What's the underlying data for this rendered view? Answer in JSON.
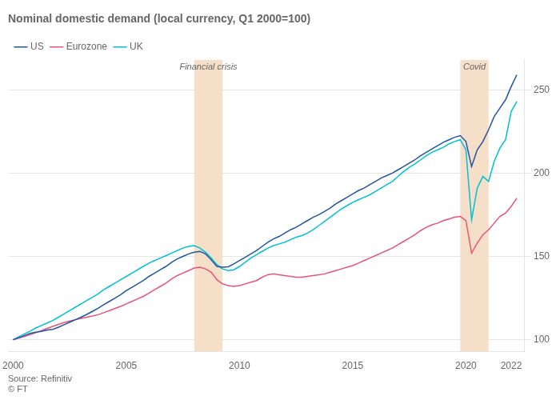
{
  "chart_data": {
    "type": "line",
    "title": "Nominal domestic demand (local currency, Q1 2000=100)",
    "source": "Source: Refinitiv",
    "footer": "© FT",
    "legend": "top-left",
    "grid": "y",
    "xlim": [
      1999.8,
      2022.6
    ],
    "xticks": [
      2000,
      2005,
      2010,
      2015,
      2020,
      2022
    ],
    "ylim": [
      93,
      268
    ],
    "yticks": [
      100,
      150,
      200,
      250
    ],
    "shading": [
      {
        "x0": 2008.0,
        "x1": 2009.25,
        "label": "Financial crisis",
        "color": "#f5dfc8"
      },
      {
        "x0": 2019.75,
        "x1": 2021.0,
        "label": "Covid",
        "color": "#f5dfc8"
      }
    ],
    "x": [
      2000.0,
      2000.25,
      2000.5,
      2000.75,
      2001.0,
      2001.25,
      2001.5,
      2001.75,
      2002.0,
      2002.25,
      2002.5,
      2002.75,
      2003.0,
      2003.25,
      2003.5,
      2003.75,
      2004.0,
      2004.25,
      2004.5,
      2004.75,
      2005.0,
      2005.25,
      2005.5,
      2005.75,
      2006.0,
      2006.25,
      2006.5,
      2006.75,
      2007.0,
      2007.25,
      2007.5,
      2007.75,
      2008.0,
      2008.25,
      2008.5,
      2008.75,
      2009.0,
      2009.25,
      2009.5,
      2009.75,
      2010.0,
      2010.25,
      2010.5,
      2010.75,
      2011.0,
      2011.25,
      2011.5,
      2011.75,
      2012.0,
      2012.25,
      2012.5,
      2012.75,
      2013.0,
      2013.25,
      2013.5,
      2013.75,
      2014.0,
      2014.25,
      2014.5,
      2014.75,
      2015.0,
      2015.25,
      2015.5,
      2015.75,
      2016.0,
      2016.25,
      2016.5,
      2016.75,
      2017.0,
      2017.25,
      2017.5,
      2017.75,
      2018.0,
      2018.25,
      2018.5,
      2018.75,
      2019.0,
      2019.25,
      2019.5,
      2019.75,
      2020.0,
      2020.25,
      2020.5,
      2020.75,
      2021.0,
      2021.25,
      2021.5,
      2021.75,
      2022.0,
      2022.25
    ],
    "series": [
      {
        "name": "US",
        "color": "#2155a3",
        "values": [
          100,
          101.2,
          102.5,
          103.8,
          104.5,
          105.0,
          105.8,
          106.2,
          107.5,
          109.0,
          110.5,
          112.0,
          113.5,
          115.2,
          117.0,
          118.8,
          121.0,
          123.0,
          125.0,
          127.0,
          129.5,
          131.5,
          133.5,
          135.5,
          138.0,
          140.0,
          142.0,
          144.0,
          146.5,
          148.5,
          150.0,
          151.5,
          152.5,
          153.0,
          151.5,
          148.0,
          144.0,
          143.5,
          143.8,
          145.5,
          147.5,
          149.5,
          151.5,
          153.5,
          156.0,
          158.5,
          160.5,
          162.0,
          164.0,
          166.0,
          167.5,
          169.5,
          171.5,
          173.5,
          175.0,
          177.0,
          179.0,
          181.5,
          183.5,
          185.5,
          187.5,
          189.5,
          191.0,
          193.0,
          195.0,
          197.0,
          198.5,
          200.0,
          202.0,
          204.0,
          206.0,
          208.0,
          210.5,
          212.5,
          214.5,
          216.5,
          218.5,
          220.0,
          221.5,
          222.5,
          219.0,
          204.0,
          214.0,
          219.0,
          226.0,
          234.0,
          239.0,
          244.0,
          252.0,
          259.0
        ]
      },
      {
        "name": "Eurozone",
        "color": "#e8537a",
        "values": [
          100,
          101.0,
          102.0,
          103.0,
          104.2,
          105.5,
          106.8,
          108.0,
          109.2,
          110.3,
          111.2,
          112.0,
          112.8,
          113.5,
          114.2,
          115.0,
          116.2,
          117.5,
          118.8,
          120.0,
          121.5,
          123.0,
          124.5,
          126.0,
          128.0,
          130.0,
          132.0,
          134.0,
          136.5,
          138.5,
          140.0,
          141.5,
          143.0,
          143.5,
          142.5,
          140.5,
          136.0,
          133.5,
          132.5,
          132.0,
          132.5,
          133.5,
          134.5,
          135.5,
          137.5,
          139.0,
          139.5,
          139.0,
          138.5,
          138.0,
          137.5,
          137.5,
          138.0,
          138.5,
          139.0,
          139.5,
          140.5,
          141.5,
          142.5,
          143.5,
          144.5,
          146.0,
          147.5,
          149.0,
          150.5,
          152.0,
          153.5,
          155.0,
          157.0,
          159.0,
          161.0,
          163.0,
          165.5,
          167.5,
          169.0,
          170.0,
          171.5,
          172.5,
          173.5,
          174.0,
          171.5,
          152.0,
          158.0,
          163.0,
          166.0,
          170.0,
          174.0,
          176.0,
          180.0,
          185.0
        ]
      },
      {
        "name": "UK",
        "color": "#00c0d4",
        "values": [
          100,
          101.8,
          103.5,
          105.2,
          107.0,
          108.5,
          110.0,
          111.5,
          113.5,
          115.5,
          117.5,
          119.5,
          121.5,
          123.5,
          125.5,
          127.5,
          130.0,
          132.0,
          134.0,
          136.0,
          138.0,
          140.0,
          142.0,
          144.0,
          146.0,
          147.5,
          149.0,
          150.5,
          152.0,
          153.5,
          155.0,
          156.0,
          156.5,
          155.0,
          152.5,
          149.0,
          145.0,
          142.5,
          141.5,
          142.0,
          144.0,
          146.5,
          149.0,
          151.0,
          153.0,
          155.0,
          156.5,
          157.5,
          158.5,
          160.0,
          161.5,
          162.5,
          164.0,
          166.0,
          168.5,
          171.0,
          173.5,
          176.0,
          178.5,
          180.5,
          182.5,
          184.0,
          185.5,
          187.0,
          189.0,
          191.0,
          193.0,
          195.0,
          198.0,
          201.0,
          203.5,
          205.5,
          208.0,
          210.5,
          212.5,
          214.0,
          215.5,
          217.5,
          219.0,
          220.0,
          214.0,
          172.0,
          191.0,
          198.0,
          195.0,
          207.0,
          215.0,
          220.0,
          237.0,
          243.0
        ]
      }
    ]
  }
}
